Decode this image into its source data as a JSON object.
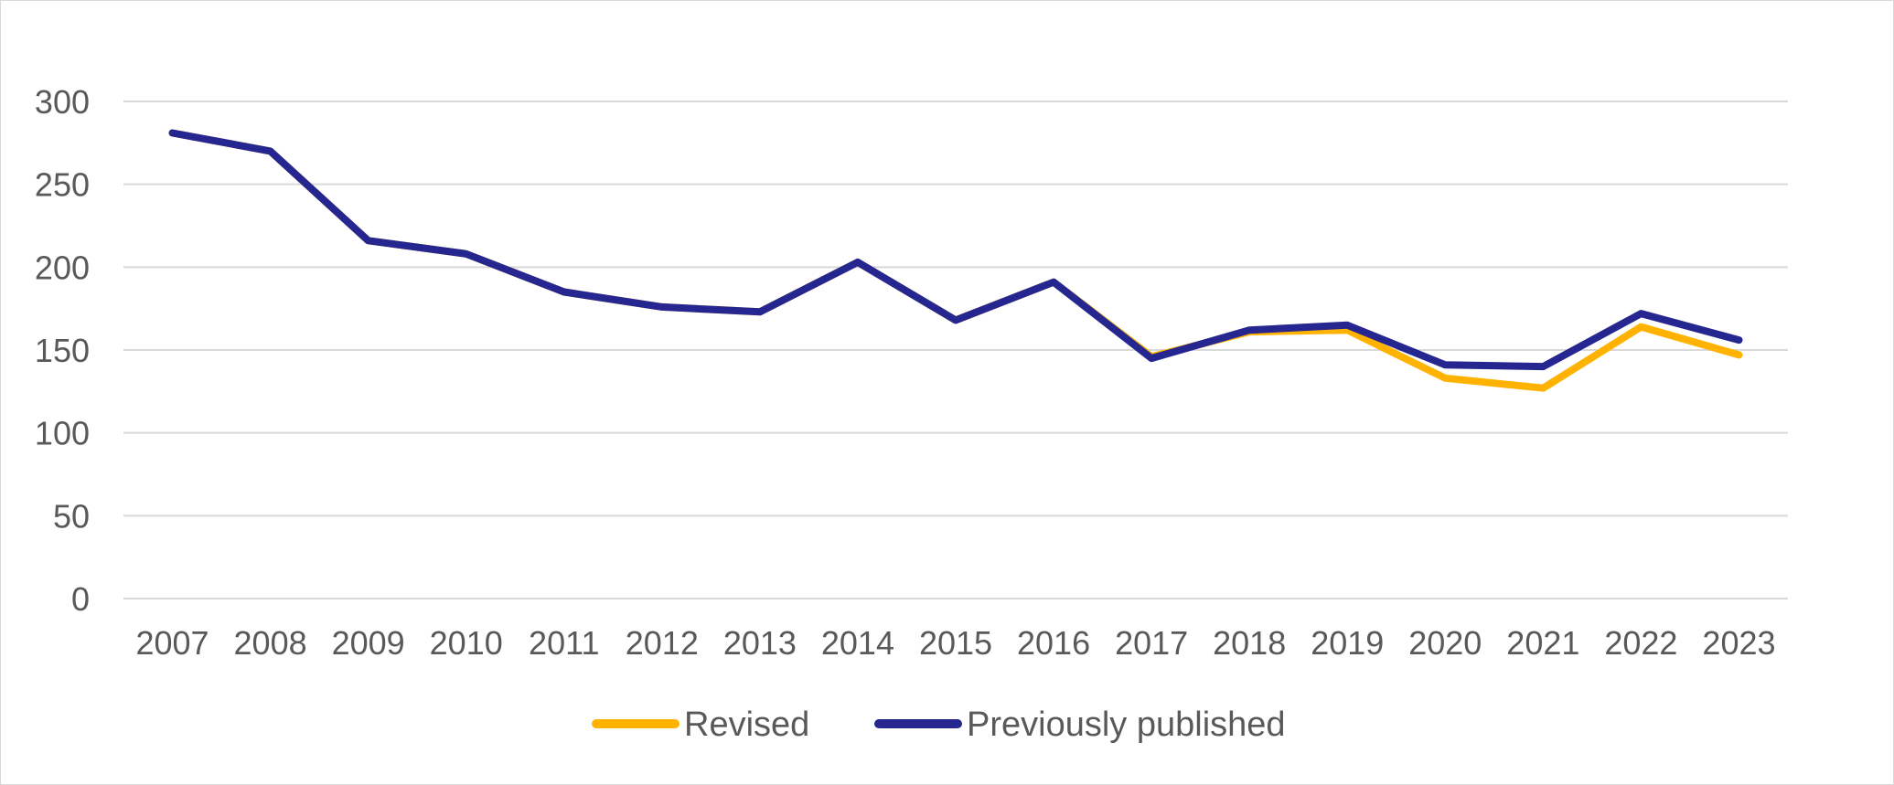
{
  "chart_data": {
    "type": "line",
    "title": "",
    "xlabel": "",
    "ylabel": "",
    "categories": [
      "2007",
      "2008",
      "2009",
      "2010",
      "2011",
      "2012",
      "2013",
      "2014",
      "2015",
      "2016",
      "2017",
      "2018",
      "2019",
      "2020",
      "2021",
      "2022",
      "2023"
    ],
    "ylim": [
      0,
      300
    ],
    "yticks": [
      "0",
      "50",
      "100",
      "150",
      "200",
      "250",
      "300"
    ],
    "grid": true,
    "legend_position": "bottom",
    "series": [
      {
        "name": "Revised",
        "color": "#FFB300",
        "values": [
          281,
          270,
          216,
          208,
          185,
          176,
          173,
          203,
          168,
          191,
          146,
          161,
          162,
          133,
          127,
          164,
          147
        ]
      },
      {
        "name": "Previously published",
        "color": "#262690",
        "values": [
          281,
          270,
          216,
          208,
          185,
          176,
          173,
          203,
          168,
          191,
          145,
          162,
          165,
          141,
          140,
          172,
          156
        ]
      }
    ]
  }
}
